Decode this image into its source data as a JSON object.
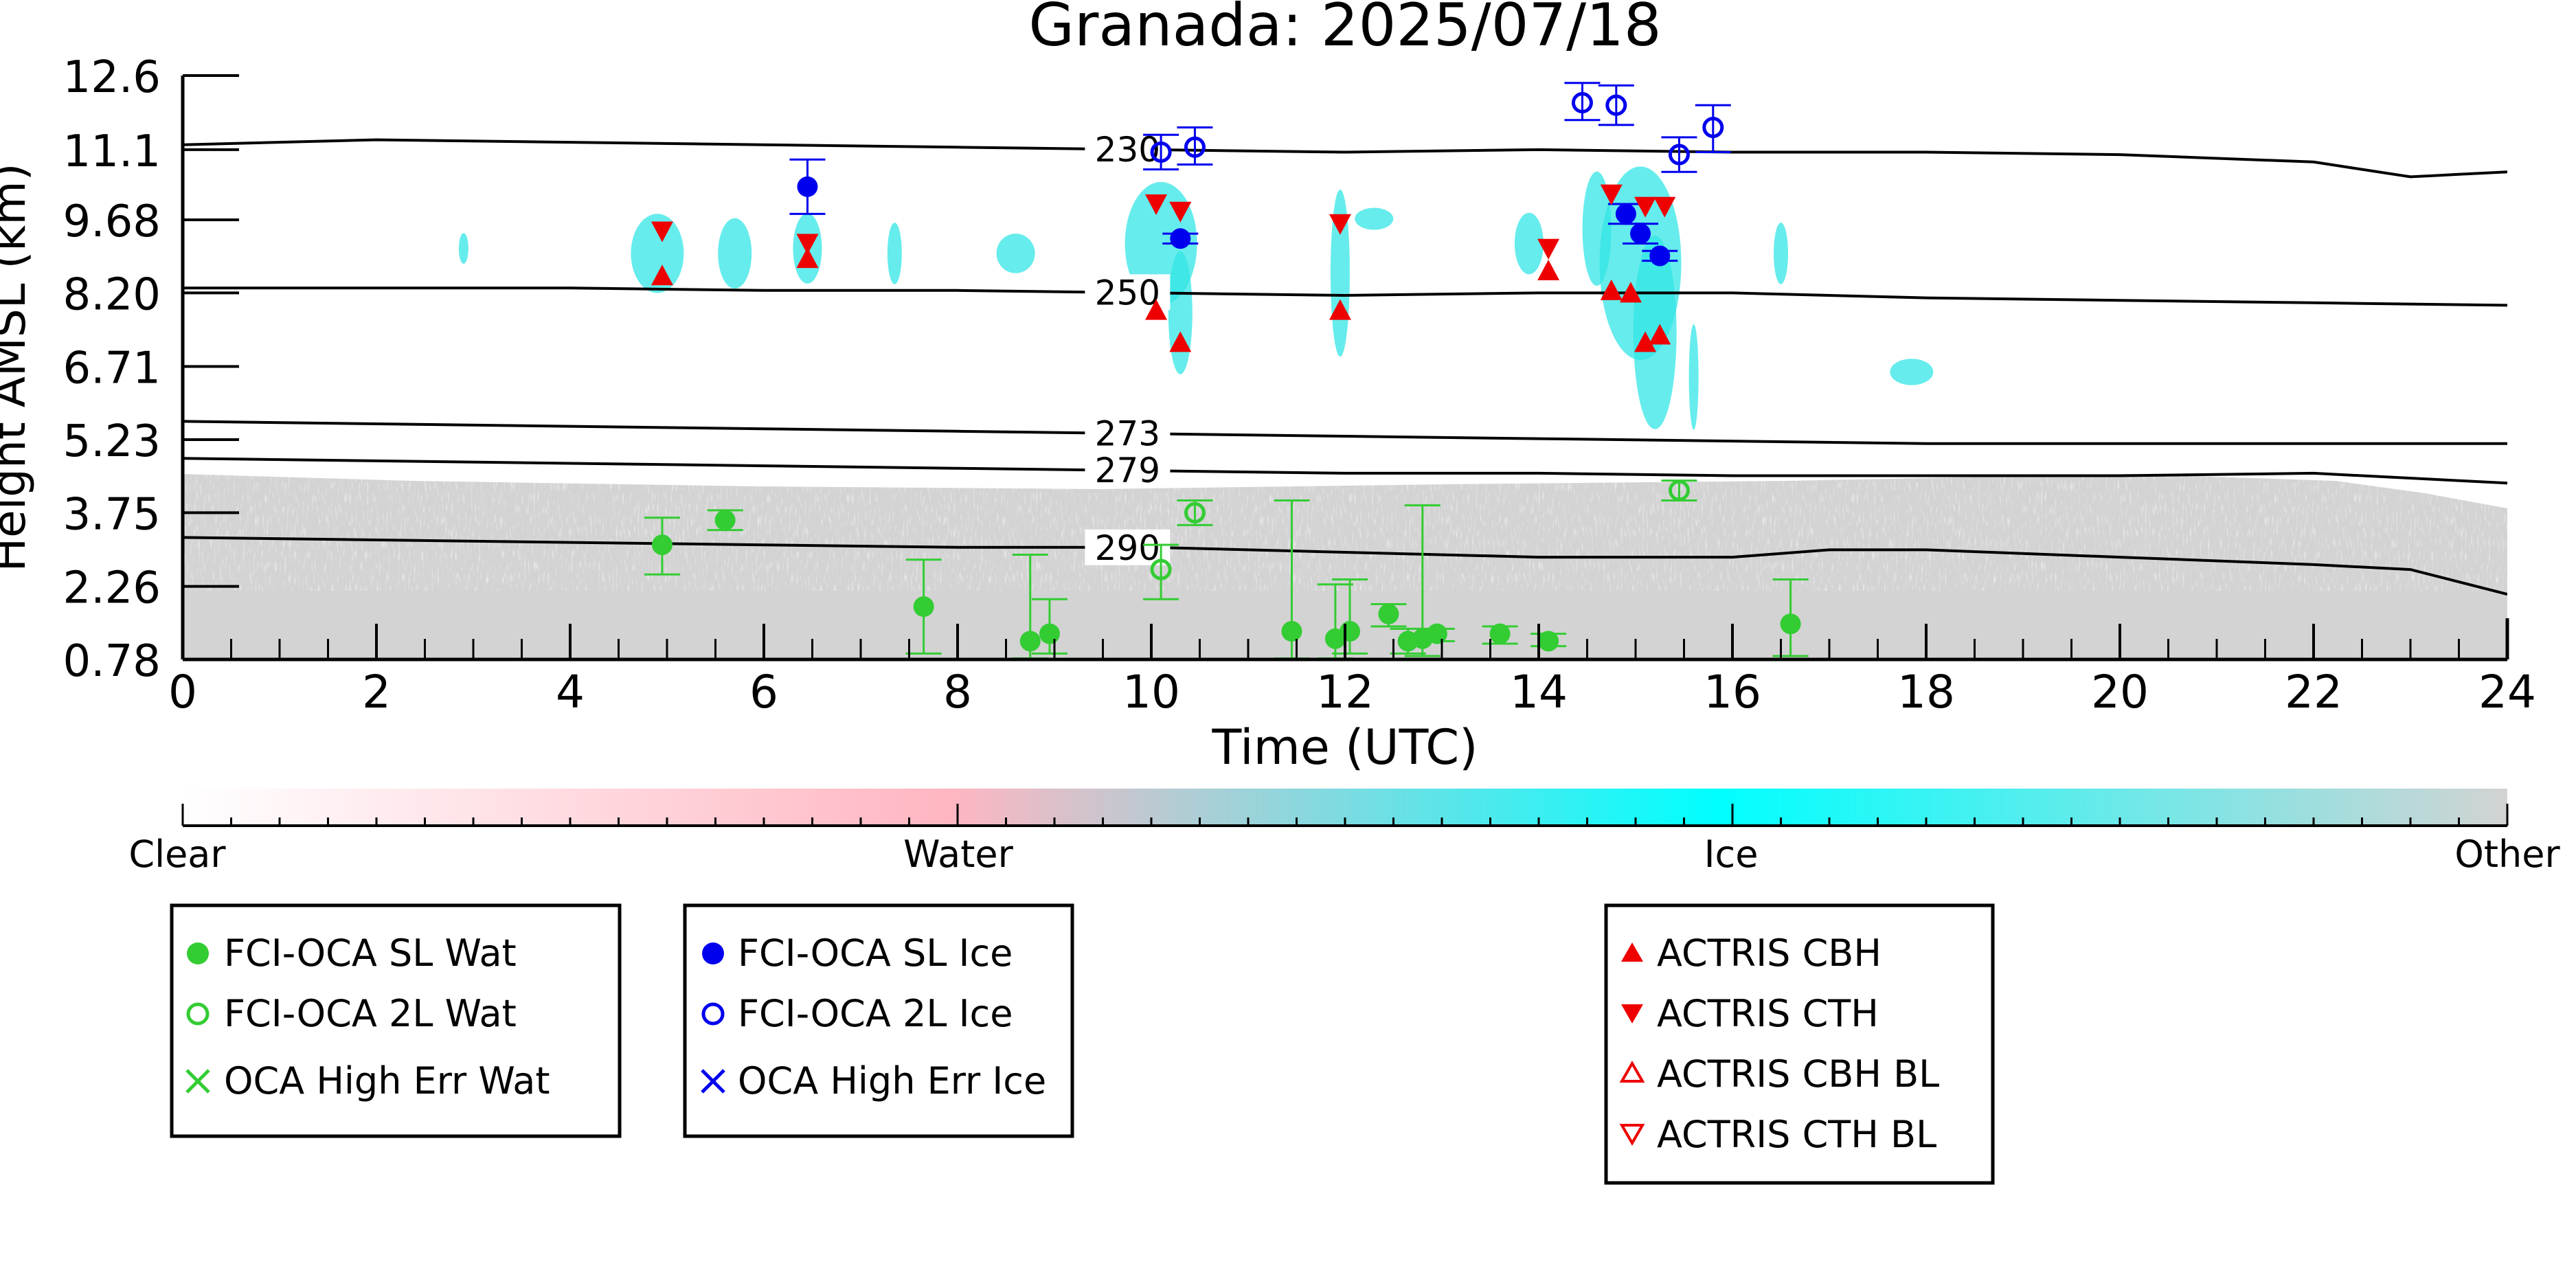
{
  "chart_data": {
    "type": "scatter",
    "title": "Granada: 2025/07/18",
    "xlabel": "Time (UTC)",
    "ylabel": "Height AMSL (km)",
    "xlim": [
      0,
      24
    ],
    "ylim": [
      0.78,
      12.6
    ],
    "xticks": [
      "0",
      "2",
      "4",
      "6",
      "8",
      "10",
      "12",
      "14",
      "16",
      "18",
      "20",
      "22",
      "24"
    ],
    "yticks": [
      "0.78",
      "2.26",
      "3.75",
      "5.23",
      "6.71",
      "8.20",
      "9.68",
      "11.1",
      "12.6"
    ],
    "ytick_values": [
      0.78,
      2.26,
      3.75,
      5.23,
      6.71,
      8.2,
      9.68,
      11.1,
      12.6
    ],
    "grid": false,
    "colorbar": {
      "labels": [
        "Clear",
        "Water",
        "Ice",
        "Other"
      ],
      "colors": [
        "#ffffff",
        "#ffb6c1",
        "#00ffff",
        "#d3d3d3"
      ]
    },
    "isotherms": [
      {
        "label": "230",
        "label_x": 9.4,
        "points": [
          [
            0,
            11.2
          ],
          [
            2,
            11.3
          ],
          [
            4,
            11.25
          ],
          [
            6,
            11.2
          ],
          [
            8,
            11.15
          ],
          [
            10,
            11.1
          ],
          [
            12,
            11.05
          ],
          [
            14,
            11.1
          ],
          [
            16,
            11.05
          ],
          [
            18,
            11.05
          ],
          [
            20,
            11.0
          ],
          [
            22,
            10.85
          ],
          [
            22.5,
            10.7
          ],
          [
            23,
            10.55
          ],
          [
            23.5,
            10.6
          ],
          [
            24,
            10.65
          ]
        ]
      },
      {
        "label": "250",
        "label_x": 9.4,
        "points": [
          [
            0,
            8.3
          ],
          [
            2,
            8.3
          ],
          [
            4,
            8.3
          ],
          [
            6,
            8.25
          ],
          [
            8,
            8.25
          ],
          [
            10,
            8.2
          ],
          [
            12,
            8.15
          ],
          [
            14,
            8.2
          ],
          [
            16,
            8.2
          ],
          [
            18,
            8.1
          ],
          [
            20,
            8.05
          ],
          [
            22,
            8.0
          ],
          [
            24,
            7.95
          ]
        ]
      },
      {
        "label": "273",
        "label_x": 9.4,
        "points": [
          [
            0,
            5.6
          ],
          [
            2,
            5.55
          ],
          [
            4,
            5.5
          ],
          [
            6,
            5.45
          ],
          [
            8,
            5.4
          ],
          [
            10,
            5.35
          ],
          [
            12,
            5.3
          ],
          [
            14,
            5.25
          ],
          [
            16,
            5.2
          ],
          [
            18,
            5.15
          ],
          [
            20,
            5.15
          ],
          [
            22,
            5.15
          ],
          [
            24,
            5.15
          ]
        ]
      },
      {
        "label": "279",
        "label_x": 9.4,
        "points": [
          [
            0,
            4.85
          ],
          [
            2,
            4.8
          ],
          [
            4,
            4.75
          ],
          [
            6,
            4.7
          ],
          [
            8,
            4.65
          ],
          [
            10,
            4.6
          ],
          [
            12,
            4.55
          ],
          [
            14,
            4.55
          ],
          [
            16,
            4.5
          ],
          [
            18,
            4.5
          ],
          [
            20,
            4.5
          ],
          [
            22,
            4.55
          ],
          [
            24,
            4.35
          ]
        ]
      },
      {
        "label": "290",
        "label_x": 9.4,
        "points": [
          [
            0,
            3.25
          ],
          [
            2,
            3.2
          ],
          [
            4,
            3.15
          ],
          [
            6,
            3.1
          ],
          [
            8,
            3.05
          ],
          [
            10,
            3.05
          ],
          [
            12,
            2.95
          ],
          [
            14,
            2.85
          ],
          [
            16,
            2.85
          ],
          [
            17,
            3.0
          ],
          [
            18,
            3.0
          ],
          [
            20,
            2.85
          ],
          [
            22,
            2.7
          ],
          [
            23,
            2.6
          ],
          [
            23.5,
            2.35
          ],
          [
            24,
            2.1
          ]
        ]
      }
    ],
    "series": [
      {
        "name": "FCI-OCA SL Wat",
        "color": "#33cc33",
        "marker": "circle-filled",
        "points": [
          {
            "x": 4.95,
            "y": 3.1,
            "lo": 2.5,
            "hi": 3.65
          },
          {
            "x": 5.6,
            "y": 3.6,
            "lo": 3.4,
            "hi": 3.8
          },
          {
            "x": 7.65,
            "y": 1.85,
            "lo": 0.9,
            "hi": 2.8
          },
          {
            "x": 8.75,
            "y": 1.15,
            "lo": 0.8,
            "hi": 2.9
          },
          {
            "x": 8.95,
            "y": 1.3,
            "lo": 0.9,
            "hi": 2.0
          },
          {
            "x": 11.45,
            "y": 1.35,
            "lo": 0.8,
            "hi": 4.0
          },
          {
            "x": 11.9,
            "y": 1.2,
            "lo": 0.8,
            "hi": 2.3
          },
          {
            "x": 12.05,
            "y": 1.35,
            "lo": 0.9,
            "hi": 2.4
          },
          {
            "x": 12.45,
            "y": 1.7,
            "lo": 1.45,
            "hi": 1.9
          },
          {
            "x": 12.65,
            "y": 1.15,
            "lo": 0.9,
            "hi": 1.4
          },
          {
            "x": 12.8,
            "y": 1.2,
            "lo": 0.85,
            "hi": 3.9
          },
          {
            "x": 12.95,
            "y": 1.3,
            "lo": 1.15,
            "hi": 1.4
          },
          {
            "x": 13.6,
            "y": 1.3,
            "lo": 1.1,
            "hi": 1.45
          },
          {
            "x": 14.1,
            "y": 1.15,
            "lo": 1.05,
            "hi": 1.3
          },
          {
            "x": 16.6,
            "y": 1.5,
            "lo": 0.85,
            "hi": 2.4
          }
        ]
      },
      {
        "name": "FCI-OCA 2L Wat",
        "color": "#33cc33",
        "marker": "circle-open",
        "points": [
          {
            "x": 10.1,
            "y": 2.6,
            "lo": 2.0,
            "hi": 3.1
          },
          {
            "x": 10.45,
            "y": 3.75,
            "lo": 3.5,
            "hi": 4.0
          },
          {
            "x": 15.45,
            "y": 4.2,
            "lo": 4.0,
            "hi": 4.4
          }
        ]
      },
      {
        "name": "OCA High Err Wat",
        "color": "#33cc33",
        "marker": "x",
        "points": []
      },
      {
        "name": "FCI-OCA SL Ice",
        "color": "#0000ee",
        "marker": "circle-filled",
        "points": [
          {
            "x": 6.45,
            "y": 10.35,
            "lo": 9.8,
            "hi": 10.9
          },
          {
            "x": 10.3,
            "y": 9.3,
            "lo": 9.2,
            "hi": 9.4
          },
          {
            "x": 14.9,
            "y": 9.8,
            "lo": 9.6,
            "hi": 10.0
          },
          {
            "x": 15.05,
            "y": 9.4,
            "lo": 9.2,
            "hi": 9.6
          },
          {
            "x": 15.25,
            "y": 8.95,
            "lo": 8.85,
            "hi": 9.05
          }
        ]
      },
      {
        "name": "FCI-OCA 2L Ice",
        "color": "#0000ee",
        "marker": "circle-open",
        "points": [
          {
            "x": 10.1,
            "y": 11.05,
            "lo": 10.7,
            "hi": 11.4
          },
          {
            "x": 10.45,
            "y": 11.15,
            "lo": 10.8,
            "hi": 11.55
          },
          {
            "x": 14.45,
            "y": 12.05,
            "lo": 11.7,
            "hi": 12.45
          },
          {
            "x": 14.8,
            "y": 12.0,
            "lo": 11.6,
            "hi": 12.4
          },
          {
            "x": 15.45,
            "y": 11.0,
            "lo": 10.65,
            "hi": 11.35
          },
          {
            "x": 15.8,
            "y": 11.55,
            "lo": 11.05,
            "hi": 12.0
          }
        ]
      },
      {
        "name": "OCA High Err Ice",
        "color": "#0000ee",
        "marker": "x",
        "points": []
      },
      {
        "name": "ACTRIS CBH",
        "color": "#ee0000",
        "marker": "triangle-up-filled",
        "points": [
          {
            "x": 4.95,
            "y": 8.55
          },
          {
            "x": 6.45,
            "y": 8.9
          },
          {
            "x": 10.05,
            "y": 7.85
          },
          {
            "x": 10.3,
            "y": 7.2
          },
          {
            "x": 11.95,
            "y": 7.85
          },
          {
            "x": 14.1,
            "y": 8.65
          },
          {
            "x": 14.75,
            "y": 8.25
          },
          {
            "x": 14.95,
            "y": 8.2
          },
          {
            "x": 15.1,
            "y": 7.2
          },
          {
            "x": 15.25,
            "y": 7.35
          }
        ]
      },
      {
        "name": "ACTRIS CTH",
        "color": "#ee0000",
        "marker": "triangle-down-filled",
        "points": [
          {
            "x": 4.95,
            "y": 9.45
          },
          {
            "x": 6.45,
            "y": 9.2
          },
          {
            "x": 10.05,
            "y": 10.0
          },
          {
            "x": 10.3,
            "y": 9.85
          },
          {
            "x": 11.95,
            "y": 9.6
          },
          {
            "x": 14.1,
            "y": 9.1
          },
          {
            "x": 14.75,
            "y": 10.2
          },
          {
            "x": 15.1,
            "y": 9.95
          },
          {
            "x": 15.3,
            "y": 9.95
          }
        ]
      },
      {
        "name": "ACTRIS CBH BL",
        "color": "#ee0000",
        "marker": "triangle-up-open",
        "points": []
      },
      {
        "name": "ACTRIS CTH BL",
        "color": "#ee0000",
        "marker": "triangle-down-open",
        "points": []
      }
    ],
    "legends": [
      {
        "entries": [
          "FCI-OCA SL Wat",
          "FCI-OCA 2L Wat",
          "OCA High Err Wat"
        ]
      },
      {
        "entries": [
          "FCI-OCA SL Ice",
          "FCI-OCA 2L Ice",
          "OCA High Err Ice"
        ]
      },
      {
        "entries": [
          "ACTRIS CBH",
          "ACTRIS CTH",
          "ACTRIS CBH BL",
          "ACTRIS CTH BL"
        ]
      }
    ]
  }
}
